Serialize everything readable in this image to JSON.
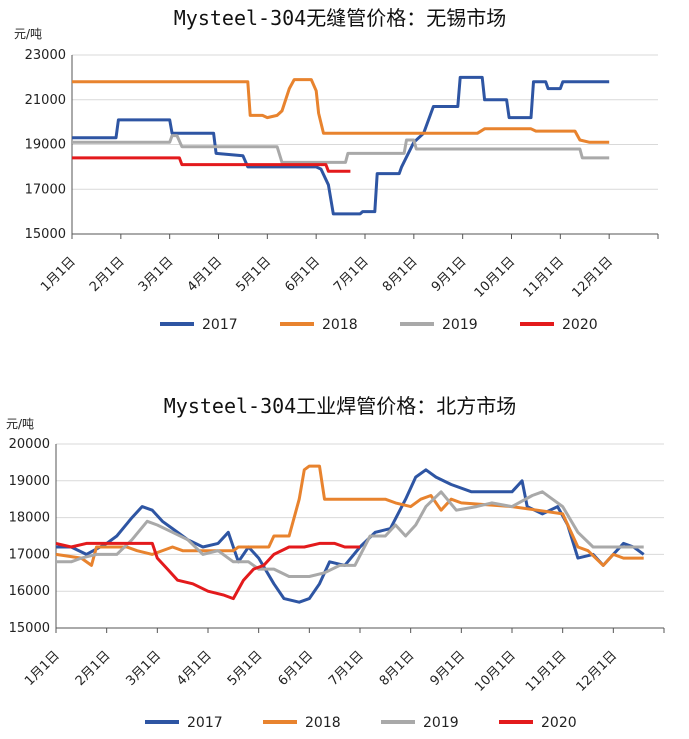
{
  "chart_data": [
    {
      "type": "line",
      "title": "Mysteel-304无缝管价格：无锡市场",
      "ylabel": "元/吨",
      "ylim": [
        15000,
        23000
      ],
      "yticks": [
        "23000",
        "21000",
        "19000",
        "17000",
        "15000"
      ],
      "ytick_values": [
        23000,
        21000,
        19000,
        17000,
        15000
      ],
      "categories": [
        "1月1日",
        "2月1日",
        "3月1日",
        "4月1日",
        "5月1日",
        "6月1日",
        "7月1日",
        "8月1日",
        "9月1日",
        "10月1日",
        "11月1日",
        "12月1日"
      ],
      "legend_position": "bottom",
      "series": [
        {
          "name": "2017",
          "color": "#2e55a3",
          "points": [
            [
              0,
              19300
            ],
            [
              0.9,
              19300
            ],
            [
              0.95,
              20100
            ],
            [
              2.0,
              20100
            ],
            [
              2.05,
              19500
            ],
            [
              2.9,
              19500
            ],
            [
              2.95,
              18600
            ],
            [
              3.5,
              18500
            ],
            [
              3.6,
              18000
            ],
            [
              5.0,
              18000
            ],
            [
              5.1,
              17900
            ],
            [
              5.25,
              17200
            ],
            [
              5.35,
              15900
            ],
            [
              5.9,
              15900
            ],
            [
              5.95,
              16000
            ],
            [
              6.2,
              16000
            ],
            [
              6.25,
              17700
            ],
            [
              6.7,
              17700
            ],
            [
              6.75,
              18000
            ],
            [
              7.0,
              19100
            ],
            [
              7.2,
              19500
            ],
            [
              7.4,
              20700
            ],
            [
              7.9,
              20700
            ],
            [
              7.95,
              22000
            ],
            [
              8.4,
              22000
            ],
            [
              8.45,
              21000
            ],
            [
              8.9,
              21000
            ],
            [
              8.95,
              20200
            ],
            [
              9.4,
              20200
            ],
            [
              9.45,
              21800
            ],
            [
              9.7,
              21800
            ],
            [
              9.75,
              21500
            ],
            [
              10.0,
              21500
            ],
            [
              10.05,
              21800
            ],
            [
              11.0,
              21800
            ]
          ]
        },
        {
          "name": "2018",
          "color": "#e8832e",
          "points": [
            [
              0,
              21800
            ],
            [
              3.6,
              21800
            ],
            [
              3.65,
              20300
            ],
            [
              3.9,
              20300
            ],
            [
              4.0,
              20200
            ],
            [
              4.2,
              20300
            ],
            [
              4.3,
              20500
            ],
            [
              4.45,
              21500
            ],
            [
              4.55,
              21900
            ],
            [
              4.9,
              21900
            ],
            [
              5.0,
              21400
            ],
            [
              5.05,
              20400
            ],
            [
              5.15,
              19500
            ],
            [
              7.7,
              19500
            ],
            [
              8.3,
              19500
            ],
            [
              8.45,
              19700
            ],
            [
              9.4,
              19700
            ],
            [
              9.5,
              19600
            ],
            [
              10.3,
              19600
            ],
            [
              10.4,
              19200
            ],
            [
              10.6,
              19100
            ],
            [
              11.0,
              19100
            ]
          ]
        },
        {
          "name": "2019",
          "color": "#a9a9a9",
          "points": [
            [
              0,
              19100
            ],
            [
              2.0,
              19100
            ],
            [
              2.05,
              19400
            ],
            [
              2.15,
              19400
            ],
            [
              2.25,
              18900
            ],
            [
              4.2,
              18900
            ],
            [
              4.3,
              18200
            ],
            [
              5.6,
              18200
            ],
            [
              5.65,
              18600
            ],
            [
              6.8,
              18600
            ],
            [
              6.85,
              19200
            ],
            [
              7.0,
              19200
            ],
            [
              7.05,
              18800
            ],
            [
              10.4,
              18800
            ],
            [
              10.45,
              18400
            ],
            [
              11.0,
              18400
            ]
          ]
        },
        {
          "name": "2020",
          "color": "#e31a1c",
          "points": [
            [
              0,
              18400
            ],
            [
              2.2,
              18400
            ],
            [
              2.25,
              18100
            ],
            [
              5.2,
              18100
            ],
            [
              5.25,
              17800
            ],
            [
              5.7,
              17800
            ]
          ]
        }
      ]
    },
    {
      "type": "line",
      "title": "Mysteel-304工业焊管价格：北方市场",
      "ylabel": "元/吨",
      "ylim": [
        15000,
        20000
      ],
      "yticks": [
        "20000",
        "19000",
        "18000",
        "17000",
        "16000",
        "15000"
      ],
      "ytick_values": [
        20000,
        19000,
        18000,
        17000,
        16000,
        15000
      ],
      "categories": [
        "1月1日",
        "2月1日",
        "3月1日",
        "4月1日",
        "5月1日",
        "6月1日",
        "7月1日",
        "8月1日",
        "9月1日",
        "10月1日",
        "11月1日",
        "12月1日"
      ],
      "legend_position": "bottom",
      "series": [
        {
          "name": "2017",
          "color": "#2e55a3",
          "points": [
            [
              0,
              17200
            ],
            [
              0.3,
              17200
            ],
            [
              0.6,
              17000
            ],
            [
              1.0,
              17300
            ],
            [
              1.2,
              17500
            ],
            [
              1.5,
              18000
            ],
            [
              1.7,
              18300
            ],
            [
              1.9,
              18200
            ],
            [
              2.1,
              17900
            ],
            [
              2.3,
              17700
            ],
            [
              2.6,
              17400
            ],
            [
              2.9,
              17200
            ],
            [
              3.2,
              17300
            ],
            [
              3.4,
              17600
            ],
            [
              3.5,
              17200
            ],
            [
              3.6,
              16800
            ],
            [
              3.8,
              17200
            ],
            [
              4.0,
              16900
            ],
            [
              4.3,
              16200
            ],
            [
              4.5,
              15800
            ],
            [
              4.8,
              15700
            ],
            [
              5.0,
              15800
            ],
            [
              5.2,
              16200
            ],
            [
              5.4,
              16800
            ],
            [
              5.7,
              16700
            ],
            [
              6.0,
              17200
            ],
            [
              6.3,
              17600
            ],
            [
              6.6,
              17700
            ],
            [
              6.9,
              18500
            ],
            [
              7.1,
              19100
            ],
            [
              7.3,
              19300
            ],
            [
              7.5,
              19100
            ],
            [
              7.8,
              18900
            ],
            [
              8.2,
              18700
            ],
            [
              9.0,
              18700
            ],
            [
              9.2,
              19000
            ],
            [
              9.3,
              18300
            ],
            [
              9.6,
              18100
            ],
            [
              9.9,
              18300
            ],
            [
              10.1,
              17800
            ],
            [
              10.3,
              16900
            ],
            [
              10.6,
              17000
            ],
            [
              10.8,
              16700
            ],
            [
              11.0,
              17000
            ],
            [
              11.2,
              17300
            ],
            [
              11.4,
              17200
            ],
            [
              11.6,
              17000
            ]
          ]
        },
        {
          "name": "2018",
          "color": "#e8832e",
          "points": [
            [
              0,
              17000
            ],
            [
              0.5,
              16900
            ],
            [
              0.7,
              16700
            ],
            [
              0.8,
              17200
            ],
            [
              1.4,
              17200
            ],
            [
              1.6,
              17100
            ],
            [
              1.9,
              17000
            ],
            [
              2.3,
              17200
            ],
            [
              2.5,
              17100
            ],
            [
              3.0,
              17100
            ],
            [
              3.5,
              17100
            ],
            [
              3.6,
              17200
            ],
            [
              4.2,
              17200
            ],
            [
              4.3,
              17500
            ],
            [
              4.6,
              17500
            ],
            [
              4.8,
              18500
            ],
            [
              4.9,
              19300
            ],
            [
              5.0,
              19400
            ],
            [
              5.2,
              19400
            ],
            [
              5.3,
              18500
            ],
            [
              6.5,
              18500
            ],
            [
              6.7,
              18400
            ],
            [
              7.0,
              18300
            ],
            [
              7.2,
              18500
            ],
            [
              7.4,
              18600
            ],
            [
              7.6,
              18200
            ],
            [
              7.8,
              18500
            ],
            [
              8.0,
              18400
            ],
            [
              9.0,
              18300
            ],
            [
              9.5,
              18200
            ],
            [
              10.0,
              18100
            ],
            [
              10.3,
              17200
            ],
            [
              10.5,
              17100
            ],
            [
              10.8,
              16700
            ],
            [
              11.0,
              17000
            ],
            [
              11.2,
              16900
            ],
            [
              11.6,
              16900
            ]
          ]
        },
        {
          "name": "2019",
          "color": "#a9a9a9",
          "points": [
            [
              0,
              16800
            ],
            [
              0.3,
              16800
            ],
            [
              0.5,
              16900
            ],
            [
              0.8,
              17000
            ],
            [
              1.2,
              17000
            ],
            [
              1.5,
              17400
            ],
            [
              1.8,
              17900
            ],
            [
              2.0,
              17800
            ],
            [
              2.3,
              17600
            ],
            [
              2.6,
              17400
            ],
            [
              2.9,
              17000
            ],
            [
              3.2,
              17100
            ],
            [
              3.5,
              16800
            ],
            [
              3.8,
              16800
            ],
            [
              4.0,
              16600
            ],
            [
              4.3,
              16600
            ],
            [
              4.6,
              16400
            ],
            [
              5.0,
              16400
            ],
            [
              5.3,
              16500
            ],
            [
              5.6,
              16700
            ],
            [
              5.9,
              16700
            ],
            [
              6.2,
              17500
            ],
            [
              6.5,
              17500
            ],
            [
              6.7,
              17800
            ],
            [
              6.9,
              17500
            ],
            [
              7.1,
              17800
            ],
            [
              7.3,
              18300
            ],
            [
              7.6,
              18700
            ],
            [
              7.9,
              18200
            ],
            [
              8.3,
              18300
            ],
            [
              8.6,
              18400
            ],
            [
              9.0,
              18300
            ],
            [
              9.4,
              18600
            ],
            [
              9.6,
              18700
            ],
            [
              9.8,
              18500
            ],
            [
              10.0,
              18300
            ],
            [
              10.3,
              17600
            ],
            [
              10.6,
              17200
            ],
            [
              11.0,
              17200
            ],
            [
              11.3,
              17200
            ],
            [
              11.6,
              17200
            ]
          ]
        },
        {
          "name": "2020",
          "color": "#e31a1c",
          "points": [
            [
              0,
              17300
            ],
            [
              0.3,
              17200
            ],
            [
              0.6,
              17300
            ],
            [
              1.6,
              17300
            ],
            [
              1.9,
              17300
            ],
            [
              2.0,
              16900
            ],
            [
              2.2,
              16600
            ],
            [
              2.4,
              16300
            ],
            [
              2.7,
              16200
            ],
            [
              3.0,
              16000
            ],
            [
              3.3,
              15900
            ],
            [
              3.5,
              15800
            ],
            [
              3.7,
              16300
            ],
            [
              3.9,
              16600
            ],
            [
              4.1,
              16700
            ],
            [
              4.3,
              17000
            ],
            [
              4.6,
              17200
            ],
            [
              4.9,
              17200
            ],
            [
              5.2,
              17300
            ],
            [
              5.5,
              17300
            ],
            [
              5.7,
              17200
            ],
            [
              6.0,
              17200
            ]
          ]
        }
      ]
    }
  ]
}
